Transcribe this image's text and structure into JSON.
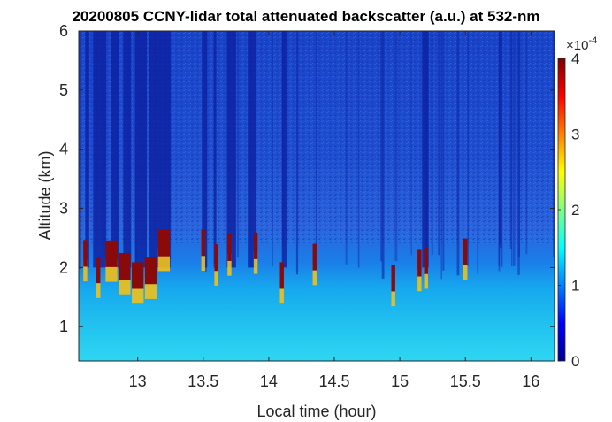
{
  "chart_data": {
    "type": "heatmap",
    "title": "20200805 CCNY-lidar total attenuated backscatter (a.u.) at 532-nm",
    "xlabel": "Local time (hour)",
    "ylabel": "Altitude (km)",
    "xlim": [
      12.55,
      16.18
    ],
    "ylim": [
      0.42,
      6.0
    ],
    "x_ticks": [
      13,
      13.5,
      14,
      14.5,
      15,
      15.5,
      16
    ],
    "x_tick_labels": [
      "13",
      "13.5",
      "14",
      "14.5",
      "15",
      "15.5",
      "16"
    ],
    "y_ticks": [
      1,
      2,
      3,
      4,
      5,
      6
    ],
    "y_tick_labels": [
      "1",
      "2",
      "3",
      "4",
      "5",
      "6"
    ],
    "colorbar": {
      "range": [
        0,
        4
      ],
      "ticks": [
        0,
        1,
        2,
        3,
        4
      ],
      "tick_labels": [
        "0",
        "1",
        "2",
        "3",
        "4"
      ],
      "scale_label": "×10",
      "scale_exponent": "-4",
      "colormap": "jet"
    },
    "grid": false,
    "features": {
      "boundary_layer_top_km": 1.9,
      "cloud_base_km": [
        1.5,
        2.2
      ],
      "cloud_times_hour": [
        12.6,
        12.7,
        12.8,
        12.9,
        13.0,
        13.1,
        13.2,
        13.5,
        13.6,
        13.7,
        13.9,
        14.1,
        14.35,
        14.95,
        15.15,
        15.2,
        15.5
      ]
    }
  }
}
